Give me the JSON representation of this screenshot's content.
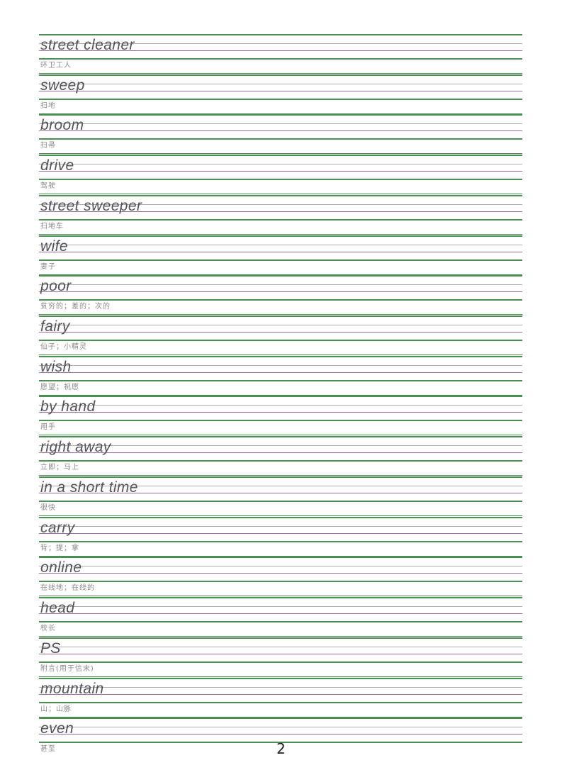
{
  "page": {
    "number": "2"
  },
  "colors": {
    "line_green": "#4d8f52",
    "line_gray": "#a9b0ab",
    "line_purple": "#9c6fa0",
    "english_text": "#54535c",
    "chinese_text": "#8a8a8a",
    "page_number_text": "#222222"
  },
  "entries": [
    {
      "word": "street cleaner",
      "meaning": "环卫工人"
    },
    {
      "word": "sweep",
      "meaning": "扫地"
    },
    {
      "word": "broom",
      "meaning": "扫帚"
    },
    {
      "word": "drive",
      "meaning": "驾驶"
    },
    {
      "word": "street sweeper",
      "meaning": "扫地车"
    },
    {
      "word": "wife",
      "meaning": "妻子"
    },
    {
      "word": "poor",
      "meaning": "贫穷的；差的；次的"
    },
    {
      "word": "fairy",
      "meaning": "仙子；小精灵"
    },
    {
      "word": "wish",
      "meaning": "愿望；祝愿"
    },
    {
      "word": "by hand",
      "meaning": "用手"
    },
    {
      "word": "right away",
      "meaning": "立即；马上"
    },
    {
      "word": "in a short time",
      "meaning": "很快"
    },
    {
      "word": "carry",
      "meaning": "背；提；拿"
    },
    {
      "word": "online",
      "meaning": "在线地；在线的"
    },
    {
      "word": "head",
      "meaning": "校长"
    },
    {
      "word": "PS",
      "meaning": "附言(用于信末)"
    },
    {
      "word": "mountain",
      "meaning": "山；山脉"
    },
    {
      "word": "even",
      "meaning": "甚至"
    }
  ]
}
